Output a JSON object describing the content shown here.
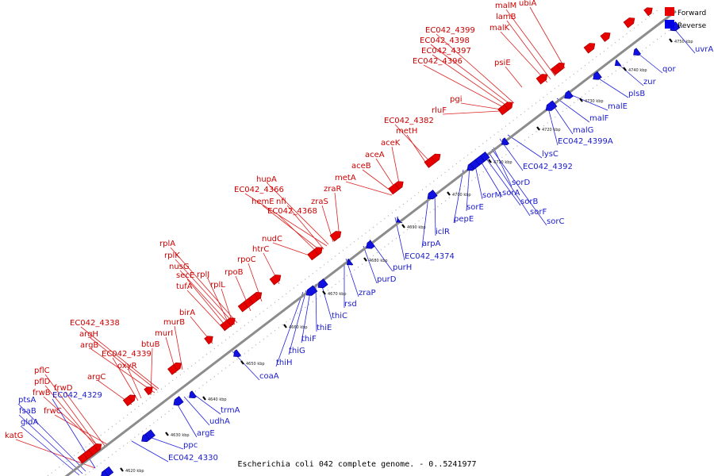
{
  "caption": "Escherichia coli 042 complete genome. - 0..5241977",
  "legend": {
    "forward": {
      "label": "Forward",
      "color": "#e60000"
    },
    "reverse": {
      "label": "Reverse",
      "color": "#0000e6"
    }
  },
  "colors": {
    "forward_label": "#cc0000",
    "reverse_label": "#1a1acc",
    "backbone": "#8c8c8c"
  },
  "kbp_ticks": [
    "4620 kbp",
    "4630 kbp",
    "4640 kbp",
    "4650 kbp",
    "4660 kbp",
    "4670 kbp",
    "4680 kbp",
    "4690 kbp",
    "4700 kbp",
    "4710 kbp",
    "4720 kbp",
    "4730 kbp",
    "4740 kbp",
    "4750 kbp"
  ],
  "forward_genes": [
    "katG",
    "pflC",
    "pflD",
    "frwB",
    "frwD",
    "frwC",
    "argC",
    "EC042_4339",
    "oxyR",
    "btuB",
    "argB",
    "argH",
    "EC042_4338",
    "murI",
    "murB",
    "birA",
    "tufA",
    "secE",
    "rplJ",
    "rplL",
    "nusG",
    "rplK",
    "rplA",
    "rpoB",
    "rpoC",
    "htrC",
    "nudC",
    "EC042_4368",
    "hemE",
    "nfi",
    "zraS",
    "EC042_4366",
    "hupA",
    "zraR",
    "metA",
    "aceB",
    "aceA",
    "aceK",
    "metH",
    "EC042_4382",
    "rluF",
    "pgi",
    "EC042_4396",
    "EC042_4397",
    "EC042_4398",
    "EC042_4399",
    "psiE",
    "malK",
    "lamB",
    "malM",
    "ubiA"
  ],
  "reverse_genes": [
    "ptsA",
    "fsaB",
    "gldA",
    "EC042_4329",
    "ppc",
    "EC042_4330",
    "argE",
    "udhA",
    "trmA",
    "coaA",
    "thiH",
    "thiG",
    "thiF",
    "thiE",
    "thiC",
    "rsd",
    "zraP",
    "purD",
    "purH",
    "EC042_4374",
    "arpA",
    "iclR",
    "pepE",
    "sorE",
    "sorM",
    "sorA",
    "sorB",
    "sorF",
    "sorC",
    "sorD",
    "EC042_4392",
    "lysC",
    "EC042_4399A",
    "malG",
    "malF",
    "malE",
    "plsB",
    "zur",
    "qor",
    "uvrA"
  ]
}
